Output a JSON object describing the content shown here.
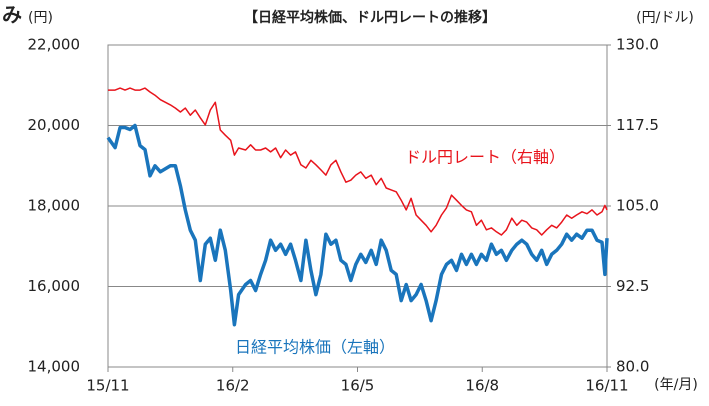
{
  "chart_data": {
    "type": "line",
    "corner_text": "み",
    "title": "【日経平均株価、ドル円レートの推移】",
    "y_unit": "(円)",
    "y2_unit": "(円/ドル)",
    "x_unit": "(年/月)",
    "xlim": [
      0,
      12
    ],
    "xticks": [
      {
        "value": 0,
        "label": "15/11"
      },
      {
        "value": 3,
        "label": "16/2"
      },
      {
        "value": 6,
        "label": "16/5"
      },
      {
        "value": 9,
        "label": "16/8"
      },
      {
        "value": 12,
        "label": "16/11"
      }
    ],
    "ylim": [
      14000,
      22000
    ],
    "yticks": [
      {
        "value": 14000,
        "label": "14,000"
      },
      {
        "value": 16000,
        "label": "16,000"
      },
      {
        "value": 18000,
        "label": "18,000"
      },
      {
        "value": 20000,
        "label": "20,000"
      },
      {
        "value": 22000,
        "label": "22,000"
      }
    ],
    "y2lim": [
      80,
      130
    ],
    "y2ticks": [
      {
        "value": 80,
        "label": "80.0"
      },
      92.5,
      {
        "value": 105,
        "label": "105.0"
      },
      117.5,
      {
        "value": 130,
        "label": "130.0"
      }
    ],
    "grid": true,
    "x": [
      0,
      0.17,
      0.29,
      0.41,
      0.53,
      0.65,
      0.77,
      0.89,
      1.01,
      1.13,
      1.26,
      1.5,
      1.62,
      1.74,
      1.86,
      1.98,
      2.1,
      2.22,
      2.34,
      2.46,
      2.58,
      2.7,
      2.82,
      2.95,
      3.04,
      3.14,
      3.31,
      3.43,
      3.55,
      3.67,
      3.79,
      3.91,
      4.03,
      4.15,
      4.27,
      4.39,
      4.51,
      4.64,
      4.76,
      4.88,
      5,
      5.12,
      5.24,
      5.36,
      5.48,
      5.6,
      5.72,
      5.84,
      5.96,
      6.08,
      6.2,
      6.33,
      6.45,
      6.57,
      6.69,
      6.81,
      6.93,
      7.05,
      7.17,
      7.29,
      7.41,
      7.53,
      7.65,
      7.77,
      7.89,
      8.02,
      8.14,
      8.26,
      8.38,
      8.5,
      8.62,
      8.74,
      8.86,
      8.98,
      9.1,
      9.22,
      9.34,
      9.46,
      9.58,
      9.71,
      9.83,
      9.95,
      10.07,
      10.19,
      10.31,
      10.43,
      10.55,
      10.67,
      10.79,
      10.91,
      11.03,
      11.15,
      11.27,
      11.4,
      11.52,
      11.64,
      11.76,
      11.88,
      11.95,
      12
    ],
    "series": [
      {
        "name": "日経平均株価（左軸）",
        "color": "#1a75bc",
        "axis": "y",
        "values": [
          19700,
          19450,
          19950,
          19950,
          19900,
          20000,
          19500,
          19400,
          18750,
          19000,
          18850,
          19000,
          19000,
          18500,
          17900,
          17400,
          17150,
          16150,
          17050,
          17200,
          16650,
          17400,
          16900,
          15900,
          15050,
          15800,
          16050,
          16150,
          15900,
          16300,
          16650,
          17150,
          16900,
          17050,
          16800,
          17050,
          16650,
          16150,
          17150,
          16400,
          15800,
          16300,
          17300,
          17050,
          17150,
          16650,
          16550,
          16150,
          16550,
          16800,
          16600,
          16900,
          16550,
          17150,
          16900,
          16400,
          16300,
          15650,
          16050,
          15650,
          15800,
          16050,
          15650,
          15150,
          15650,
          16300,
          16550,
          16650,
          16400,
          16800,
          16550,
          16800,
          16550,
          16800,
          16650,
          17050,
          16800,
          16900,
          16650,
          16900,
          17050,
          17150,
          17050,
          16800,
          16650,
          16900,
          16550,
          16800,
          16900,
          17050,
          17300,
          17150,
          17300,
          17200,
          17400,
          17400,
          17150,
          17100,
          16300,
          17200
        ]
      },
      {
        "name": "ドル円レート（右軸）",
        "color": "#e8141c",
        "axis": "y2",
        "values": [
          123.0,
          123.0,
          123.3,
          123.0,
          123.3,
          123.0,
          123.0,
          123.3,
          122.7,
          122.2,
          121.5,
          120.7,
          120.2,
          119.6,
          120.2,
          119.1,
          119.9,
          118.7,
          117.6,
          119.9,
          121.1,
          116.8,
          116.0,
          115.2,
          112.9,
          114.0,
          113.7,
          114.5,
          113.7,
          113.7,
          114.0,
          113.4,
          114.0,
          112.5,
          113.7,
          112.9,
          113.4,
          111.4,
          110.9,
          112.1,
          111.4,
          110.6,
          109.8,
          111.4,
          112.1,
          110.3,
          108.7,
          109.0,
          109.8,
          110.3,
          109.3,
          109.8,
          108.3,
          109.3,
          107.8,
          107.5,
          107.2,
          105.9,
          104.4,
          106.2,
          103.6,
          102.8,
          102.0,
          101.0,
          102.0,
          103.6,
          104.7,
          106.7,
          105.9,
          105.1,
          104.4,
          104.1,
          102.0,
          102.8,
          101.3,
          101.6,
          101.0,
          100.5,
          101.3,
          103.1,
          102.0,
          102.8,
          102.5,
          101.6,
          101.3,
          100.5,
          101.3,
          102.0,
          101.6,
          102.5,
          103.6,
          103.1,
          103.6,
          104.1,
          103.8,
          104.4,
          103.6,
          104.1,
          105.1,
          104.4
        ]
      }
    ]
  }
}
